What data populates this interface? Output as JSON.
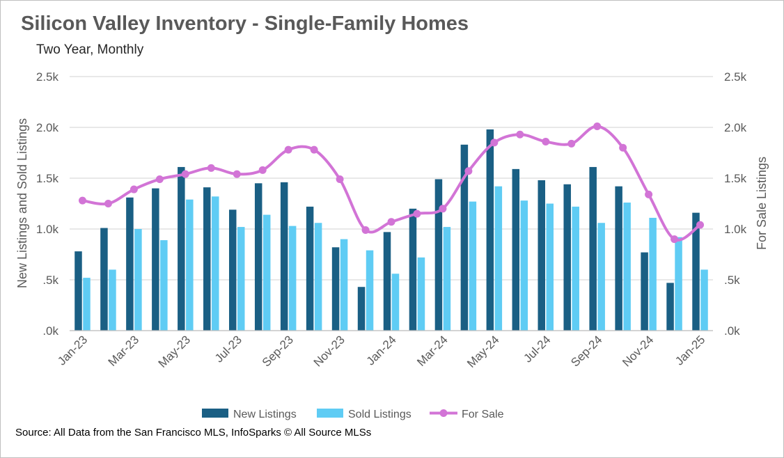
{
  "title": "Silicon Valley Inventory - Single-Family Homes",
  "subtitle": "Two Year, Monthly",
  "source": "Source: All Data from the San Francisco MLS, InfoSparks © All Source MLSs",
  "colors": {
    "new_listings": "#1a5f84",
    "sold_listings": "#5fccf4",
    "for_sale": "#d274d6",
    "grid": "#d9d9d9",
    "text": "#595959"
  },
  "chart_data": {
    "type": "bar",
    "title": "Silicon Valley Inventory - Single-Family Homes",
    "subtitle": "Two Year, Monthly",
    "categories": [
      "Jan-23",
      "Feb-23",
      "Mar-23",
      "Apr-23",
      "May-23",
      "Jun-23",
      "Jul-23",
      "Aug-23",
      "Sep-23",
      "Oct-23",
      "Nov-23",
      "Dec-23",
      "Jan-24",
      "Feb-24",
      "Mar-24",
      "Apr-24",
      "May-24",
      "Jun-24",
      "Jul-24",
      "Aug-24",
      "Sep-24",
      "Oct-24",
      "Nov-24",
      "Dec-24",
      "Jan-25"
    ],
    "x_tick_labels": [
      "Jan-23",
      "Mar-23",
      "May-23",
      "Jul-23",
      "Sep-23",
      "Nov-23",
      "Jan-24",
      "Mar-24",
      "May-24",
      "Jul-24",
      "Sep-24",
      "Nov-24",
      "Jan-25"
    ],
    "series": [
      {
        "name": "New Listings",
        "type": "bar",
        "axis": "left",
        "values": [
          780,
          1010,
          1310,
          1400,
          1610,
          1410,
          1190,
          1450,
          1460,
          1220,
          820,
          430,
          970,
          1200,
          1490,
          1830,
          1980,
          1590,
          1480,
          1440,
          1610,
          1420,
          770,
          470,
          1160
        ]
      },
      {
        "name": "Sold Listings",
        "type": "bar",
        "axis": "left",
        "values": [
          520,
          600,
          1000,
          890,
          1290,
          1320,
          1020,
          1140,
          1030,
          1060,
          900,
          790,
          560,
          720,
          1020,
          1270,
          1420,
          1280,
          1250,
          1220,
          1060,
          1260,
          1110,
          920,
          600
        ]
      },
      {
        "name": "For Sale",
        "type": "line",
        "axis": "right",
        "values": [
          1280,
          1250,
          1390,
          1490,
          1540,
          1600,
          1540,
          1580,
          1780,
          1780,
          1490,
          990,
          1070,
          1150,
          1200,
          1570,
          1850,
          1930,
          1860,
          1840,
          2010,
          1800,
          1340,
          900,
          1040
        ]
      }
    ],
    "ylabel_left": "New Listings and Sold Listings",
    "ylabel_right": "For Sale Listings",
    "ylim": [
      0,
      2500
    ],
    "y_tick_labels": [
      ".0k",
      ".5k",
      "1.0k",
      "1.5k",
      "2.0k",
      "2.5k"
    ],
    "grid": true,
    "legend": "bottom"
  }
}
